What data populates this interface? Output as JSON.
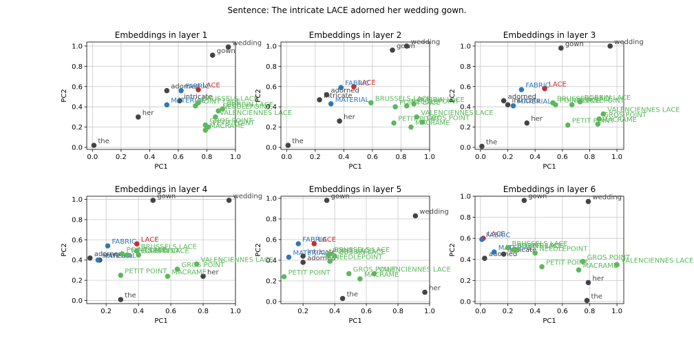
{
  "suptitle": "Sentence: The intricate LACE adorned her wedding gown.",
  "colors": {
    "context": "#444444",
    "target": "#cc2a2a",
    "related": "#2f78b8",
    "other": "#5cb85c"
  },
  "chart_data": [
    {
      "type": "scatter",
      "title": "Embeddings in layer 1",
      "xlabel": "PC1",
      "ylabel": "PC2",
      "xlim": [
        -0.04,
        1.0
      ],
      "ylim": [
        -0.02,
        1.04
      ],
      "xticks": [
        0.0,
        0.2,
        0.4,
        0.6,
        0.8,
        1.0
      ],
      "yticks": [
        0.0,
        0.2,
        0.4,
        0.6,
        0.8,
        1.0
      ],
      "xtick_labels": [
        "0.0",
        "0.2",
        "0.4",
        "0.6",
        "0.8",
        "1.0"
      ],
      "ytick_labels": [
        "0.0",
        "0.2",
        "0.4",
        "0.6",
        "0.8",
        "1.0"
      ],
      "grid": true,
      "points": [
        {
          "label": "the",
          "group": "context",
          "x": 0.01,
          "y": 0.02
        },
        {
          "label": "her",
          "group": "context",
          "x": 0.32,
          "y": 0.3
        },
        {
          "label": "adorned",
          "group": "context",
          "x": 0.52,
          "y": 0.56
        },
        {
          "label": "intricate",
          "group": "context",
          "x": 0.61,
          "y": 0.46
        },
        {
          "label": "gown",
          "group": "context",
          "x": 0.84,
          "y": 0.91
        },
        {
          "label": "wedding",
          "group": "context",
          "x": 0.95,
          "y": 0.99
        },
        {
          "label": "LACE",
          "group": "target",
          "x": 0.74,
          "y": 0.57
        },
        {
          "label": "FABRIC",
          "group": "related",
          "x": 0.62,
          "y": 0.56
        },
        {
          "label": "MATERIAL",
          "group": "related",
          "x": 0.52,
          "y": 0.42
        },
        {
          "label": "BRUSSELS LACE",
          "group": "other",
          "x": 0.74,
          "y": 0.44
        },
        {
          "label": "NEEDLEPOINT",
          "group": "other",
          "x": 0.88,
          "y": 0.36
        },
        {
          "label": "BOBBIN LACE",
          "group": "other",
          "x": 0.91,
          "y": 0.38
        },
        {
          "label": "POINT LACE",
          "group": "other",
          "x": 0.72,
          "y": 0.41
        },
        {
          "label": "VALENCIENNES LACE",
          "group": "other",
          "x": 0.86,
          "y": 0.3
        },
        {
          "label": "GROS POINT",
          "group": "other",
          "x": 0.79,
          "y": 0.22
        },
        {
          "label": "PETIT POINT",
          "group": "other",
          "x": 0.81,
          "y": 0.2
        },
        {
          "label": "MACRAME",
          "group": "other",
          "x": 0.79,
          "y": 0.17
        }
      ]
    },
    {
      "type": "scatter",
      "title": "Embeddings in layer 2",
      "xlabel": "PC1",
      "ylabel": "PC2",
      "xlim": [
        -0.04,
        1.0
      ],
      "ylim": [
        -0.02,
        1.04
      ],
      "xticks": [
        0.0,
        0.2,
        0.4,
        0.6,
        0.8,
        1.0
      ],
      "yticks": [
        0.0,
        0.2,
        0.4,
        0.6,
        0.8,
        1.0
      ],
      "xtick_labels": [
        "0.0",
        "0.2",
        "0.4",
        "0.6",
        "0.8",
        "1.0"
      ],
      "ytick_labels": [
        "0.0",
        "0.2",
        "0.4",
        "0.6",
        "0.8",
        "1.0"
      ],
      "grid": true,
      "points": [
        {
          "label": "the",
          "group": "context",
          "x": 0.01,
          "y": 0.02
        },
        {
          "label": "her",
          "group": "context",
          "x": 0.37,
          "y": 0.26
        },
        {
          "label": "adorned",
          "group": "context",
          "x": 0.28,
          "y": 0.52
        },
        {
          "label": "intricate",
          "group": "context",
          "x": 0.23,
          "y": 0.47
        },
        {
          "label": "gown",
          "group": "context",
          "x": 0.74,
          "y": 0.96
        },
        {
          "label": "wedding",
          "group": "context",
          "x": 0.84,
          "y": 1.0
        },
        {
          "label": "LACE",
          "group": "target",
          "x": 0.47,
          "y": 0.6
        },
        {
          "label": "FABRIC",
          "group": "related",
          "x": 0.38,
          "y": 0.59
        },
        {
          "label": "MATERIAL",
          "group": "related",
          "x": 0.31,
          "y": 0.43
        },
        {
          "label": "BRUSSELS LACE",
          "group": "other",
          "x": 0.59,
          "y": 0.44
        },
        {
          "label": "POINT LACE",
          "group": "other",
          "x": 0.76,
          "y": 0.4
        },
        {
          "label": "NEEDLEPOINT",
          "group": "other",
          "x": 0.84,
          "y": 0.41
        },
        {
          "label": "BOBBIN LACE",
          "group": "other",
          "x": 0.89,
          "y": 0.43
        },
        {
          "label": "VALENCIENNES LACE",
          "group": "other",
          "x": 0.91,
          "y": 0.3
        },
        {
          "label": "PETIT POINT",
          "group": "other",
          "x": 0.75,
          "y": 0.24
        },
        {
          "label": "GROS POINT",
          "group": "other",
          "x": 0.95,
          "y": 0.25
        },
        {
          "label": "MACRAME",
          "group": "other",
          "x": 0.87,
          "y": 0.2
        }
      ]
    },
    {
      "type": "scatter",
      "title": "Embeddings in layer 3",
      "xlabel": "PC1",
      "ylabel": "PC2",
      "xlim": [
        -0.04,
        1.05
      ],
      "ylim": [
        -0.02,
        1.04
      ],
      "xticks": [
        0.0,
        0.2,
        0.4,
        0.6,
        0.8,
        1.0
      ],
      "yticks": [
        0.0,
        0.2,
        0.4,
        0.6,
        0.8,
        1.0
      ],
      "xtick_labels": [
        "0.0",
        "0.2",
        "0.4",
        "0.6",
        "0.8",
        "1.0"
      ],
      "ytick_labels": [
        "0.0",
        "0.2",
        "0.4",
        "0.6",
        "0.8",
        "1.0"
      ],
      "grid": true,
      "points": [
        {
          "label": "the",
          "group": "context",
          "x": 0.01,
          "y": 0.01
        },
        {
          "label": "her",
          "group": "context",
          "x": 0.34,
          "y": 0.24
        },
        {
          "label": "adorned",
          "group": "context",
          "x": 0.17,
          "y": 0.46
        },
        {
          "label": "intricate",
          "group": "context",
          "x": 0.2,
          "y": 0.42
        },
        {
          "label": "gown",
          "group": "context",
          "x": 0.59,
          "y": 0.98
        },
        {
          "label": "wedding",
          "group": "context",
          "x": 0.95,
          "y": 1.0
        },
        {
          "label": "LACE",
          "group": "target",
          "x": 0.47,
          "y": 0.58
        },
        {
          "label": "FABRIC",
          "group": "related",
          "x": 0.3,
          "y": 0.57
        },
        {
          "label": "MATERIAL",
          "group": "related",
          "x": 0.24,
          "y": 0.41
        },
        {
          "label": "BRUSSELS LACE",
          "group": "other",
          "x": 0.53,
          "y": 0.44
        },
        {
          "label": "POINT LACE",
          "group": "other",
          "x": 0.55,
          "y": 0.42
        },
        {
          "label": "NEEDLEPOINT",
          "group": "other",
          "x": 0.67,
          "y": 0.42
        },
        {
          "label": "BOBBIN LACE",
          "group": "other",
          "x": 0.73,
          "y": 0.45
        },
        {
          "label": "VALENCIENNES LACE",
          "group": "other",
          "x": 0.9,
          "y": 0.33
        },
        {
          "label": "GROS POINT",
          "group": "other",
          "x": 0.87,
          "y": 0.28
        },
        {
          "label": "PETIT POINT",
          "group": "other",
          "x": 0.64,
          "y": 0.22
        },
        {
          "label": "MACRAME",
          "group": "other",
          "x": 0.86,
          "y": 0.23
        }
      ]
    },
    {
      "type": "scatter",
      "title": "Embeddings in layer 4",
      "xlabel": "PC1",
      "ylabel": "PC2",
      "xlim": [
        0.08,
        1.0
      ],
      "ylim": [
        -0.03,
        1.03
      ],
      "xticks": [
        0.2,
        0.4,
        0.6,
        0.8,
        1.0
      ],
      "yticks": [
        0.0,
        0.2,
        0.4,
        0.6,
        0.8,
        1.0
      ],
      "xtick_labels": [
        "0.2",
        "0.4",
        "0.6",
        "0.8",
        "1.0"
      ],
      "ytick_labels": [
        "0.0",
        "0.2",
        "0.4",
        "0.6",
        "0.8",
        "1.0"
      ],
      "grid": true,
      "points": [
        {
          "label": "the",
          "group": "context",
          "x": 0.29,
          "y": 0.01
        },
        {
          "label": "her",
          "group": "context",
          "x": 0.8,
          "y": 0.24
        },
        {
          "label": "adorned",
          "group": "context",
          "x": 0.1,
          "y": 0.42
        },
        {
          "label": "intricate",
          "group": "context",
          "x": 0.16,
          "y": 0.4
        },
        {
          "label": "gown",
          "group": "context",
          "x": 0.49,
          "y": 0.99
        },
        {
          "label": "wedding",
          "group": "context",
          "x": 0.96,
          "y": 0.99
        },
        {
          "label": "LACE",
          "group": "target",
          "x": 0.39,
          "y": 0.56
        },
        {
          "label": "FABRIC",
          "group": "related",
          "x": 0.21,
          "y": 0.54
        },
        {
          "label": "MATERIAL",
          "group": "related",
          "x": 0.15,
          "y": 0.4
        },
        {
          "label": "BRUSSELS LACE",
          "group": "other",
          "x": 0.39,
          "y": 0.49
        },
        {
          "label": "POINT LACE",
          "group": "other",
          "x": 0.3,
          "y": 0.46
        },
        {
          "label": "NEEDLEPOINT",
          "group": "other",
          "x": 0.33,
          "y": 0.45
        },
        {
          "label": "BOBBIN LACE",
          "group": "other",
          "x": 0.4,
          "y": 0.45
        },
        {
          "label": "VALENCIENNES LACE",
          "group": "other",
          "x": 0.76,
          "y": 0.36
        },
        {
          "label": "GROS POINT",
          "group": "other",
          "x": 0.64,
          "y": 0.31
        },
        {
          "label": "PETIT POINT",
          "group": "other",
          "x": 0.29,
          "y": 0.25
        },
        {
          "label": "MACRAME",
          "group": "other",
          "x": 0.58,
          "y": 0.24
        }
      ]
    },
    {
      "type": "scatter",
      "title": "Embeddings in layer 5",
      "xlabel": "PC1",
      "ylabel": "PC2",
      "xlim": [
        0.06,
        1.0
      ],
      "ylim": [
        -0.02,
        1.02
      ],
      "xticks": [
        0.2,
        0.4,
        0.6,
        0.8,
        1.0
      ],
      "yticks": [
        0.0,
        0.2,
        0.4,
        0.6,
        0.8,
        1.0
      ],
      "xtick_labels": [
        "0.2",
        "0.4",
        "0.6",
        "0.8",
        "1.0"
      ],
      "ytick_labels": [
        "0.0",
        "0.2",
        "0.4",
        "0.6",
        "0.8",
        "1.0"
      ],
      "grid": true,
      "points": [
        {
          "label": "the",
          "group": "context",
          "x": 0.45,
          "y": 0.03
        },
        {
          "label": "her",
          "group": "context",
          "x": 0.97,
          "y": 0.09
        },
        {
          "label": "adorned",
          "group": "context",
          "x": 0.2,
          "y": 0.38
        },
        {
          "label": "intricate",
          "group": "context",
          "x": 0.2,
          "y": 0.44
        },
        {
          "label": "gown",
          "group": "context",
          "x": 0.35,
          "y": 0.98
        },
        {
          "label": "wedding",
          "group": "context",
          "x": 0.91,
          "y": 0.83
        },
        {
          "label": "LACE",
          "group": "target",
          "x": 0.27,
          "y": 0.56
        },
        {
          "label": "FABRIC",
          "group": "related",
          "x": 0.17,
          "y": 0.56
        },
        {
          "label": "MATERIAL",
          "group": "related",
          "x": 0.11,
          "y": 0.43
        },
        {
          "label": "BRUSSELS LACE",
          "group": "other",
          "x": 0.37,
          "y": 0.46
        },
        {
          "label": "POINT LACE",
          "group": "other",
          "x": 0.36,
          "y": 0.45
        },
        {
          "label": "BOBBIN LACE",
          "group": "other",
          "x": 0.4,
          "y": 0.44
        },
        {
          "label": "NEEDLEPOINT",
          "group": "other",
          "x": 0.37,
          "y": 0.39
        },
        {
          "label": "PETIT POINT",
          "group": "other",
          "x": 0.08,
          "y": 0.24
        },
        {
          "label": "GROS POINT",
          "group": "other",
          "x": 0.49,
          "y": 0.27
        },
        {
          "label": "VALENCIENNES LACE",
          "group": "other",
          "x": 0.65,
          "y": 0.27
        },
        {
          "label": "MACRAME",
          "group": "other",
          "x": 0.56,
          "y": 0.22
        }
      ]
    },
    {
      "type": "scatter",
      "title": "Embeddings in layer 6",
      "xlabel": "PC1",
      "ylabel": "PC2",
      "xlim": [
        -0.04,
        1.05
      ],
      "ylim": [
        -0.02,
        1.0
      ],
      "xticks": [
        0.0,
        0.2,
        0.4,
        0.6,
        0.8,
        1.0
      ],
      "yticks": [
        0.0,
        0.2,
        0.4,
        0.6,
        0.8,
        1.0
      ],
      "xtick_labels": [
        "0.0",
        "0.2",
        "0.4",
        "0.6",
        "0.8",
        "1.0"
      ],
      "ytick_labels": [
        "0.0",
        "0.2",
        "0.4",
        "0.6",
        "0.8",
        "1.0"
      ],
      "grid": true,
      "points": [
        {
          "label": "the",
          "group": "context",
          "x": 0.78,
          "y": 0.01
        },
        {
          "label": "her",
          "group": "context",
          "x": 0.79,
          "y": 0.18
        },
        {
          "label": "adorned",
          "group": "context",
          "x": 0.03,
          "y": 0.41
        },
        {
          "label": "intricate",
          "group": "context",
          "x": 0.17,
          "y": 0.45
        },
        {
          "label": "gown",
          "group": "context",
          "x": 0.32,
          "y": 0.96
        },
        {
          "label": "wedding",
          "group": "context",
          "x": 0.79,
          "y": 0.95
        },
        {
          "label": "LACE",
          "group": "target",
          "x": 0.02,
          "y": 0.6
        },
        {
          "label": "FABRIC",
          "group": "related",
          "x": 0.01,
          "y": 0.59
        },
        {
          "label": "MATERIAL",
          "group": "related",
          "x": 0.1,
          "y": 0.47
        },
        {
          "label": "BRUSSELS LACE",
          "group": "other",
          "x": 0.2,
          "y": 0.51
        },
        {
          "label": "BOBBIN LACE",
          "group": "other",
          "x": 0.24,
          "y": 0.49
        },
        {
          "label": "POINT LACE",
          "group": "other",
          "x": 0.27,
          "y": 0.49
        },
        {
          "label": "NEEDLEPOINT",
          "group": "other",
          "x": 0.4,
          "y": 0.46
        },
        {
          "label": "GROS POINT",
          "group": "other",
          "x": 0.75,
          "y": 0.38
        },
        {
          "label": "PETIT POINT",
          "group": "other",
          "x": 0.45,
          "y": 0.33
        },
        {
          "label": "VALENCIENNES LACE",
          "group": "other",
          "x": 1.0,
          "y": 0.35
        },
        {
          "label": "MACRAME",
          "group": "other",
          "x": 0.72,
          "y": 0.3
        }
      ]
    }
  ]
}
